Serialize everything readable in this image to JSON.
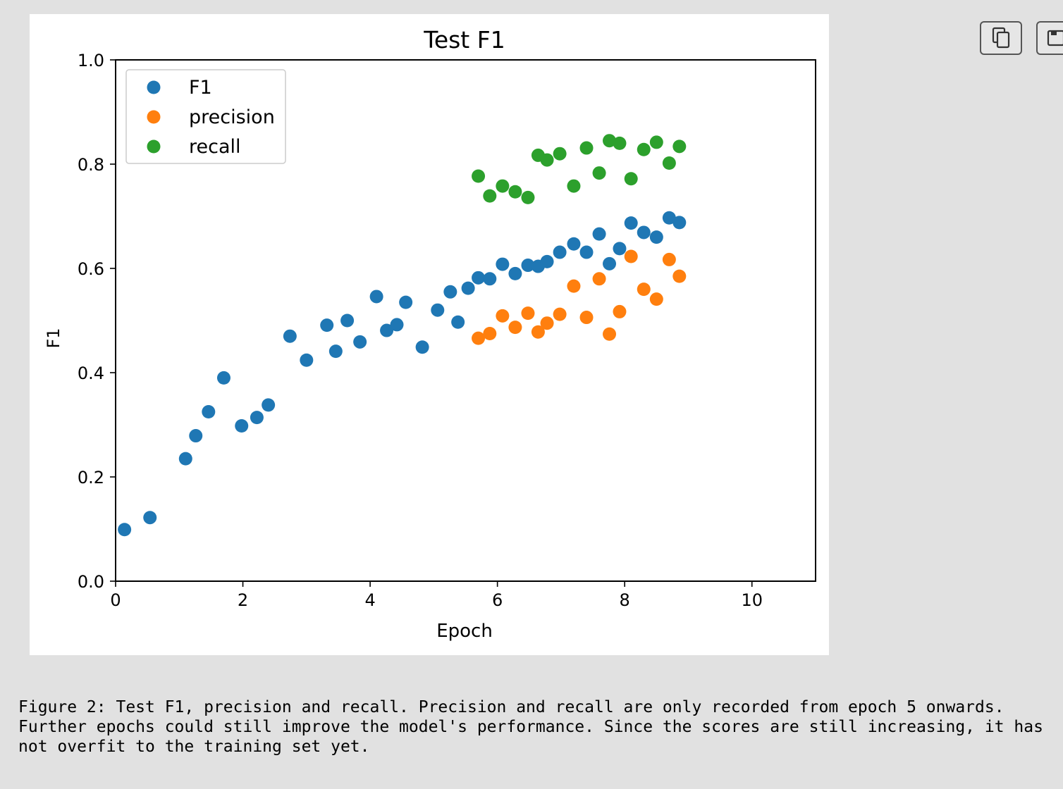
{
  "chart_data": {
    "type": "scatter",
    "title": "Test F1",
    "xlabel": "Epoch",
    "ylabel": "F1",
    "xlim": [
      0,
      11
    ],
    "ylim": [
      0,
      1.0
    ],
    "xticks": [
      0,
      2,
      4,
      6,
      8,
      10
    ],
    "yticks": [
      0.0,
      0.2,
      0.4,
      0.6,
      0.8,
      1.0
    ],
    "xtick_labels": [
      "0",
      "2",
      "4",
      "6",
      "8",
      "10"
    ],
    "ytick_labels": [
      "0.0",
      "0.2",
      "0.4",
      "0.6",
      "0.8",
      "1.0"
    ],
    "grid": false,
    "legend_position": "top-left",
    "series": [
      {
        "name": "F1",
        "color": "#1f77b4",
        "points": [
          [
            0.14,
            0.099
          ],
          [
            0.54,
            0.122
          ],
          [
            1.1,
            0.235
          ],
          [
            1.26,
            0.279
          ],
          [
            1.46,
            0.325
          ],
          [
            1.7,
            0.39
          ],
          [
            1.98,
            0.298
          ],
          [
            2.22,
            0.314
          ],
          [
            2.4,
            0.338
          ],
          [
            2.74,
            0.47
          ],
          [
            3.0,
            0.424
          ],
          [
            3.32,
            0.491
          ],
          [
            3.46,
            0.441
          ],
          [
            3.64,
            0.5
          ],
          [
            3.84,
            0.459
          ],
          [
            4.1,
            0.546
          ],
          [
            4.26,
            0.481
          ],
          [
            4.42,
            0.492
          ],
          [
            4.56,
            0.535
          ],
          [
            4.82,
            0.449
          ],
          [
            5.06,
            0.52
          ],
          [
            5.26,
            0.555
          ],
          [
            5.38,
            0.497
          ],
          [
            5.54,
            0.562
          ],
          [
            5.7,
            0.582
          ],
          [
            5.88,
            0.58
          ],
          [
            6.08,
            0.608
          ],
          [
            6.28,
            0.59
          ],
          [
            6.48,
            0.606
          ],
          [
            6.64,
            0.604
          ],
          [
            6.78,
            0.613
          ],
          [
            6.98,
            0.631
          ],
          [
            7.2,
            0.647
          ],
          [
            7.4,
            0.631
          ],
          [
            7.6,
            0.666
          ],
          [
            7.76,
            0.609
          ],
          [
            7.92,
            0.638
          ],
          [
            8.1,
            0.687
          ],
          [
            8.3,
            0.669
          ],
          [
            8.5,
            0.66
          ],
          [
            8.7,
            0.697
          ],
          [
            8.86,
            0.688
          ]
        ]
      },
      {
        "name": "precision",
        "color": "#ff7f0e",
        "points": [
          [
            5.7,
            0.466
          ],
          [
            5.88,
            0.475
          ],
          [
            6.08,
            0.509
          ],
          [
            6.28,
            0.487
          ],
          [
            6.48,
            0.514
          ],
          [
            6.64,
            0.478
          ],
          [
            6.78,
            0.495
          ],
          [
            6.98,
            0.512
          ],
          [
            7.2,
            0.566
          ],
          [
            7.4,
            0.506
          ],
          [
            7.6,
            0.58
          ],
          [
            7.76,
            0.474
          ],
          [
            7.92,
            0.517
          ],
          [
            8.1,
            0.623
          ],
          [
            8.3,
            0.56
          ],
          [
            8.5,
            0.541
          ],
          [
            8.7,
            0.617
          ],
          [
            8.86,
            0.585
          ]
        ]
      },
      {
        "name": "recall",
        "color": "#2ca02c",
        "points": [
          [
            5.7,
            0.777
          ],
          [
            5.88,
            0.739
          ],
          [
            6.08,
            0.758
          ],
          [
            6.28,
            0.747
          ],
          [
            6.48,
            0.736
          ],
          [
            6.64,
            0.817
          ],
          [
            6.78,
            0.808
          ],
          [
            6.98,
            0.82
          ],
          [
            7.2,
            0.758
          ],
          [
            7.4,
            0.831
          ],
          [
            7.6,
            0.783
          ],
          [
            7.76,
            0.845
          ],
          [
            7.92,
            0.84
          ],
          [
            8.1,
            0.772
          ],
          [
            8.3,
            0.828
          ],
          [
            8.5,
            0.842
          ],
          [
            8.7,
            0.802
          ],
          [
            8.86,
            0.834
          ]
        ]
      }
    ]
  },
  "caption": "Figure 2: Test F1, precision and recall. Precision and recall are only recorded from epoch 5 onwards. Further epochs could still improve the model's performance. Since the scores are still increasing, it has not overfit to the training set yet.",
  "toolbar": {
    "copy_icon": "copy-icon",
    "save_icon": "save-icon"
  }
}
